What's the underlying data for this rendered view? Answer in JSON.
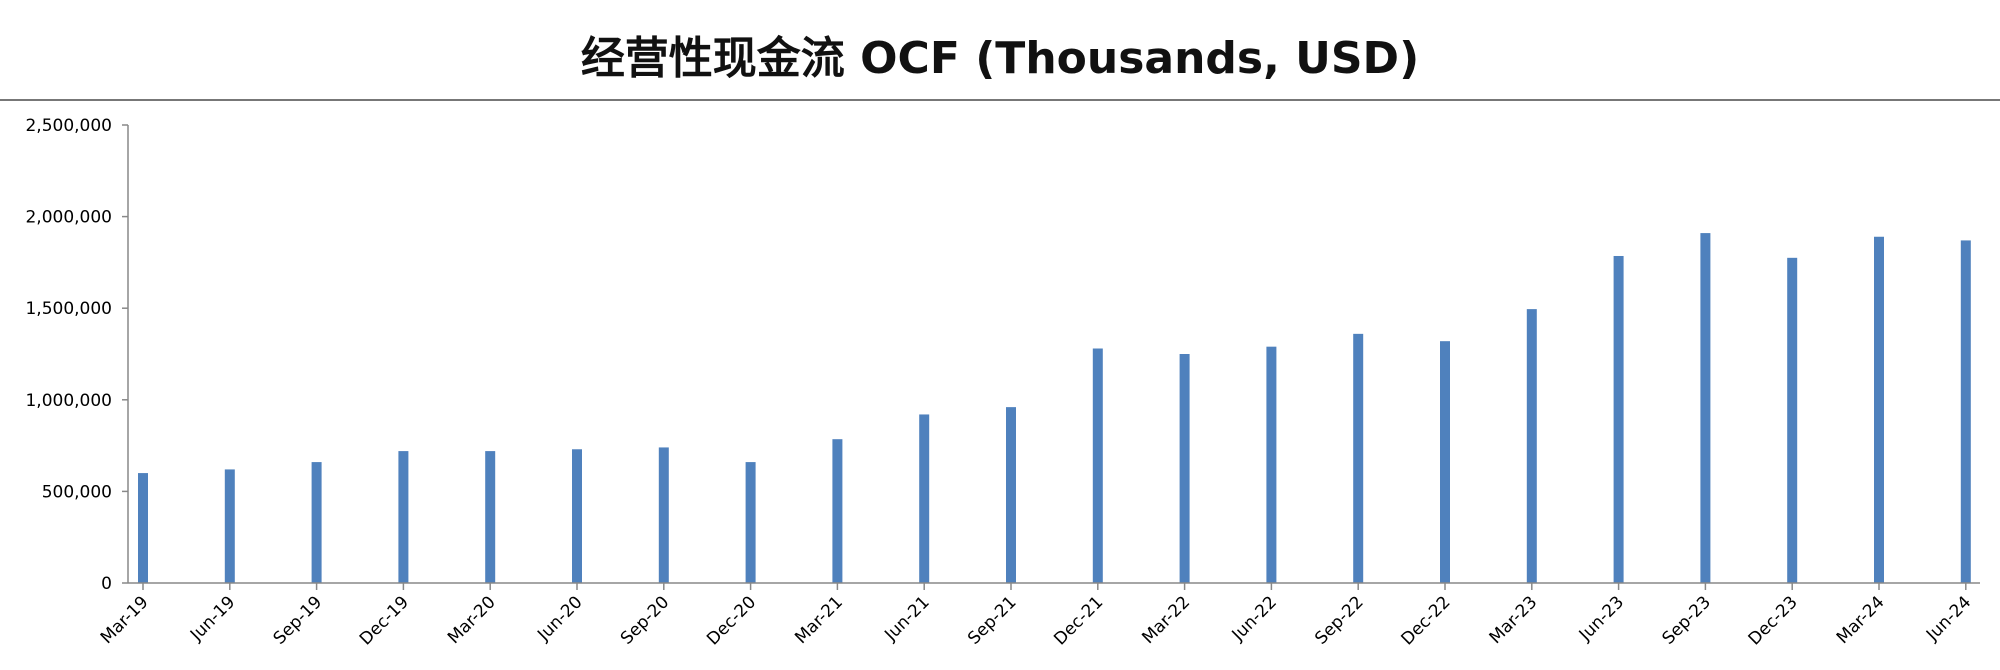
{
  "chart_data": {
    "type": "bar",
    "title": "经营性现金流 OCF (Thousands, USD)",
    "xlabel": "",
    "ylabel": "",
    "ylim": [
      0,
      2500000
    ],
    "yticks": [
      0,
      500000,
      1000000,
      1500000,
      2000000,
      2500000
    ],
    "ytick_labels": [
      "0",
      "500,000",
      "1,000,000",
      "1,500,000",
      "2,000,000",
      "2,500,000"
    ],
    "grid": false,
    "legend": "none",
    "bar_color": "#4F81BD",
    "categories": [
      "Mar-19",
      "Jun-19",
      "Sep-19",
      "Dec-19",
      "Mar-20",
      "Jun-20",
      "Sep-20",
      "Dec-20",
      "Mar-21",
      "Jun-21",
      "Sep-21",
      "Dec-21",
      "Mar-22",
      "Jun-22",
      "Sep-22",
      "Dec-22",
      "Mar-23",
      "Jun-23",
      "Sep-23",
      "Dec-23",
      "Mar-24",
      "Jun-24"
    ],
    "values": [
      600000,
      620000,
      660000,
      720000,
      720000,
      730000,
      740000,
      660000,
      785000,
      920000,
      960000,
      1280000,
      1250000,
      1290000,
      1360000,
      1320000,
      1495000,
      1785000,
      1910000,
      1775000,
      1890000,
      1870000
    ]
  }
}
